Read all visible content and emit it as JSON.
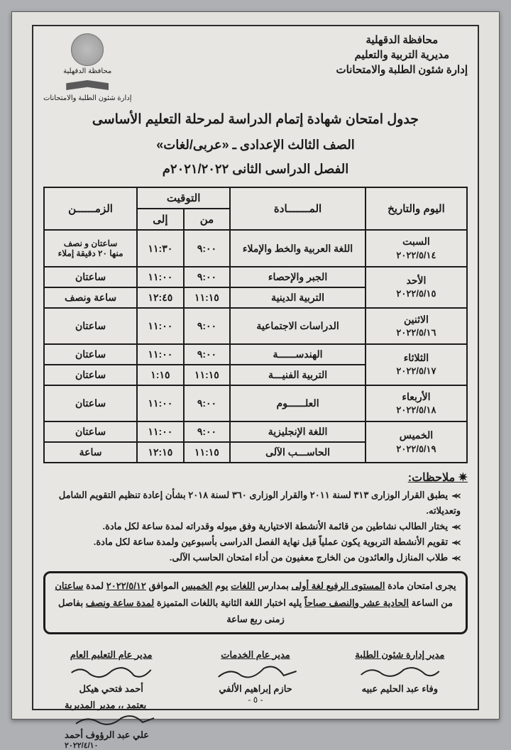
{
  "header": {
    "right": [
      "محافظة الدقهلية",
      "مديرية التربية والتعليم",
      "إدارة شئون الطلبة والامتحانات"
    ],
    "left_top": "محافظة الدقهلية",
    "left_bottom": "إدارة شئون الطلبة والامتحانات"
  },
  "title": {
    "l1": "جدول امتحان شهادة إتمام الدراسة لمرحلة التعليم الأساسى",
    "l2": "الصف الثالث الإعدادى ـ «عربى/لغات»",
    "l3": "الفصل الدراسى الثانى ٢٠٢١/٢٠٢٢م"
  },
  "table": {
    "cols": {
      "day": "اليوم والتاريخ",
      "subject": "المـــــــادة",
      "timing": "التوقيت",
      "from": "من",
      "to": "إلى",
      "duration": "الزمــــــن"
    },
    "days": [
      {
        "name": "السبت",
        "date": "٢٠٢٢/٥/١٤",
        "rows": [
          {
            "subject": "اللغة العربية والخط والإملاء",
            "from": "٩:٠٠",
            "to": "١١:٣٠",
            "dur": "ساعتان و نصف\nمنها ٢٠ دقيقة إملاء"
          }
        ]
      },
      {
        "name": "الأحد",
        "date": "٢٠٢٢/٥/١٥",
        "rows": [
          {
            "subject": "الجبر والإحصاء",
            "from": "٩:٠٠",
            "to": "١١:٠٠",
            "dur": "ساعتان"
          },
          {
            "subject": "التربية الدينية",
            "from": "١١:١٥",
            "to": "١٢:٤٥",
            "dur": "ساعة ونصف"
          }
        ]
      },
      {
        "name": "الاثنين",
        "date": "٢٠٢٢/٥/١٦",
        "rows": [
          {
            "subject": "الدراسات الاجتماعية",
            "from": "٩:٠٠",
            "to": "١١:٠٠",
            "dur": "ساعتان"
          }
        ]
      },
      {
        "name": "الثلاثاء",
        "date": "٢٠٢٢/٥/١٧",
        "rows": [
          {
            "subject": "الهندســــــة",
            "from": "٩:٠٠",
            "to": "١١:٠٠",
            "dur": "ساعتان"
          },
          {
            "subject": "التربية الفنيـــة",
            "from": "١١:١٥",
            "to": "١:١٥",
            "dur": "ساعتان"
          }
        ]
      },
      {
        "name": "الأربعاء",
        "date": "٢٠٢٢/٥/١٨",
        "rows": [
          {
            "subject": "العلــــــوم",
            "from": "٩:٠٠",
            "to": "١١:٠٠",
            "dur": "ساعتان"
          }
        ]
      },
      {
        "name": "الخميس",
        "date": "٢٠٢٢/٥/١٩",
        "rows": [
          {
            "subject": "اللغة الإنجليزية",
            "from": "٩:٠٠",
            "to": "١١:٠٠",
            "dur": "ساعتان"
          },
          {
            "subject": "الحاســـب الآلى",
            "from": "١١:١٥",
            "to": "١٢:١٥",
            "dur": "ساعة"
          }
        ]
      }
    ]
  },
  "notes_label": "✷ ملاحظات:",
  "notes": [
    "يطبق القرار الوزارى ٣١٣ لسنة ٢٠١١ والقرار الوزارى ٣٦٠ لسنة ٢٠١٨ بشأن إعادة تنظيم التقويم الشامل وتعديلاته.",
    "يختار الطالب نشاطين من قائمة الأنشطة الاختيارية وفق ميوله وقدراته لمدة ساعة لكل مادة.",
    "تقويم الأنشطة التربوية يكون عملياً قبل نهاية الفصل الدراسى بأسبوعين ولمدة ساعة لكل مادة.",
    "طلاب المنازل والعائدون من الخارج معفيون من أداء امتحان الحاسب الآلى."
  ],
  "box": "يجرى امتحان مادة <u>المستوى الرفيع لغة أولى</u> بمدارس <u>اللغات</u> يوم <u>الخميس</u> الموافق <u>٢٠٢٢/٥/١٢</u> لمدة <u>ساعتان</u><br>من الساعة <u>الحادية عشر والنصف صباحاً</u> يليه اختبار اللغة الثانية باللغات المتميزة <u>لمدة ساعة ونصف</u> بفاصل زمنى ربع ساعة",
  "sigs": {
    "s1": {
      "role": "مدير إدارة شئون الطلبة",
      "name": "وفاء عبد الحليم عبيه"
    },
    "s2": {
      "role": "مدير عام الخدمات",
      "name": "حازم إبراهيم الألفي"
    },
    "s3": {
      "role": "مدير عام التعليم العام",
      "name": "أحمد فتحي هيكل"
    },
    "approve": {
      "role": "يعتمد ،، مدير المديرية",
      "name": "علي عبد الرؤوف أحمد",
      "date": "٢٠٢٢/٤/١٠"
    }
  },
  "pagenum": "- ٥ -"
}
